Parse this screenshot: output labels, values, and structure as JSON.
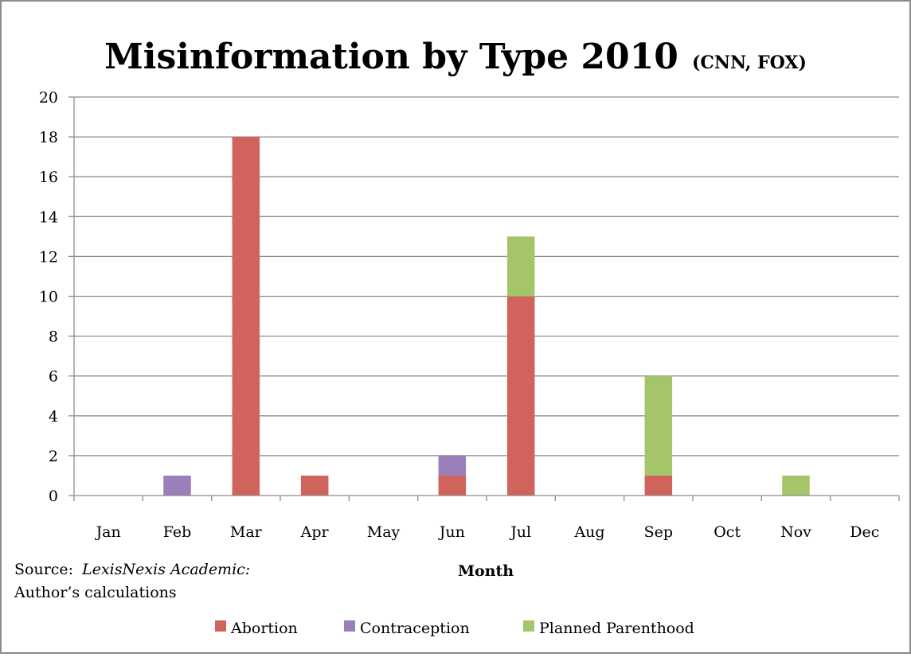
{
  "chart_data": {
    "type": "bar",
    "stacked": true,
    "title": "Misinformation by Type 2010",
    "subtitle": "(CNN, FOX)",
    "xlabel": "Month",
    "ylabel": "",
    "ylim": [
      0,
      20
    ],
    "y_ticks": [
      "0",
      "2",
      "4",
      "6",
      "8",
      "10",
      "12",
      "14",
      "16",
      "18",
      "20"
    ],
    "categories": [
      "Jan",
      "Feb",
      "Mar",
      "Apr",
      "May",
      "Jun",
      "Jul",
      "Aug",
      "Sep",
      "Oct",
      "Nov",
      "Dec"
    ],
    "grid": true,
    "legend_position": "bottom",
    "series": [
      {
        "name": "Abortion",
        "color": "#d0635b",
        "values": [
          0,
          0,
          18,
          1,
          0,
          1,
          10,
          0,
          1,
          0,
          0,
          0
        ]
      },
      {
        "name": "Contraception",
        "color": "#9a7fbb",
        "values": [
          0,
          1,
          0,
          0,
          0,
          1,
          0,
          0,
          0,
          0,
          0,
          0
        ]
      },
      {
        "name": "Planned Parenthood",
        "color": "#a4c56a",
        "values": [
          0,
          0,
          0,
          0,
          0,
          0,
          3,
          0,
          5,
          0,
          1,
          0
        ]
      }
    ],
    "source_label": "Source:",
    "source_italic": "LexisNexis Academic:",
    "source_line2": "Author’s calculations"
  }
}
